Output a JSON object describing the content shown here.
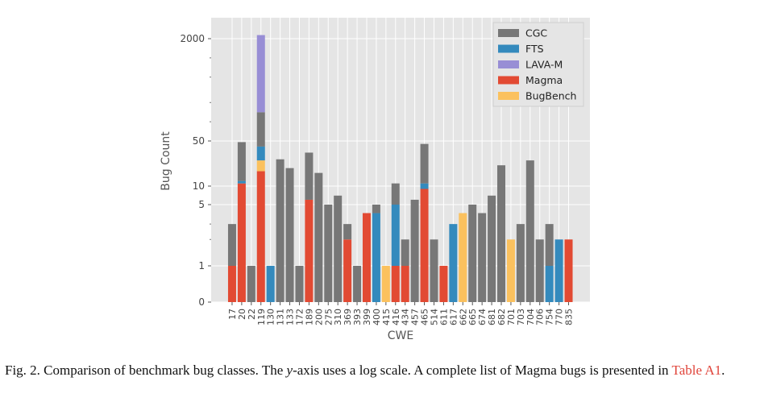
{
  "chart_data": {
    "type": "bar",
    "stacked": true,
    "xlabel": "CWE",
    "ylabel": "Bug Count",
    "yscale": "symlog",
    "yticks": [
      0,
      1,
      5,
      10,
      50,
      2000
    ],
    "ytick_labels": [
      "0",
      "1",
      "5",
      "10",
      "50",
      "2000"
    ],
    "grid": true,
    "legend_position": "top-right",
    "categories": [
      "17",
      "20",
      "22",
      "119",
      "130",
      "131",
      "133",
      "172",
      "189",
      "200",
      "275",
      "310",
      "369",
      "393",
      "399",
      "400",
      "415",
      "416",
      "434",
      "457",
      "465",
      "514",
      "611",
      "617",
      "662",
      "665",
      "674",
      "681",
      "682",
      "701",
      "703",
      "704",
      "706",
      "754",
      "770",
      "835"
    ],
    "series": [
      {
        "name": "Magma",
        "color": "#e24a33",
        "values": [
          1,
          11,
          0,
          17,
          0,
          0,
          0,
          0,
          6,
          0,
          0,
          0,
          2,
          0,
          4,
          0,
          0,
          1,
          1,
          0,
          9,
          0,
          1,
          0,
          0,
          0,
          0,
          0,
          0,
          0,
          0,
          0,
          0,
          0,
          0,
          2
        ]
      },
      {
        "name": "BugBench",
        "color": "#fbc15e",
        "values": [
          0,
          0,
          0,
          8,
          0,
          0,
          0,
          0,
          0,
          0,
          0,
          0,
          0,
          0,
          0,
          0,
          1,
          0,
          0,
          0,
          0,
          0,
          0,
          0,
          4,
          0,
          0,
          0,
          0,
          2,
          0,
          0,
          0,
          0,
          0,
          0
        ]
      },
      {
        "name": "FTS",
        "color": "#348abd",
        "values": [
          0,
          1,
          0,
          16,
          1,
          0,
          0,
          0,
          0,
          0,
          0,
          0,
          0,
          0,
          0,
          4,
          0,
          4,
          0,
          0,
          2,
          0,
          0,
          3,
          0,
          0,
          0,
          0,
          0,
          0,
          0,
          0,
          0,
          1,
          2,
          0
        ]
      },
      {
        "name": "CGC",
        "color": "#777777",
        "values": [
          2,
          36,
          1,
          100,
          0,
          26,
          19,
          1,
          27,
          16,
          5,
          7,
          1,
          1,
          0,
          1,
          0,
          6,
          1,
          6,
          34,
          2,
          0,
          0,
          0,
          5,
          4,
          7,
          21,
          0,
          3,
          25,
          2,
          2,
          0,
          0
        ]
      },
      {
        "name": "LAVA-M",
        "color": "#988ed5",
        "values": [
          0,
          0,
          0,
          2136,
          0,
          0,
          0,
          0,
          0,
          0,
          0,
          0,
          0,
          0,
          0,
          0,
          0,
          0,
          0,
          0,
          0,
          0,
          0,
          0,
          0,
          0,
          0,
          0,
          0,
          0,
          0,
          0,
          0,
          0,
          0,
          0
        ]
      }
    ],
    "legend_order": [
      "CGC",
      "FTS",
      "LAVA-M",
      "Magma",
      "BugBench"
    ]
  },
  "caption": {
    "prefix": "Fig. 2.  Comparison of benchmark bug classes. The ",
    "var": "y",
    "mid": "-axis uses a log scale. A complete list of Magma bugs is presented in ",
    "link": "Table A1",
    "suffix": "."
  }
}
